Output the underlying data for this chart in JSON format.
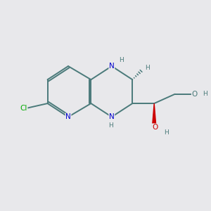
{
  "background_color": "#e8e8eb",
  "bond_color": "#4a7a7a",
  "atom_colors": {
    "N": "#0000cc",
    "Cl": "#00aa00",
    "O_red": "#cc0000",
    "O_gray": "#4a7a7a",
    "H": "#4a7a7a",
    "C": "#4a7a7a"
  },
  "font_size_atom": 7.5,
  "font_size_H": 6.5,
  "xlim": [
    0,
    10
  ],
  "ylim": [
    0,
    10
  ]
}
